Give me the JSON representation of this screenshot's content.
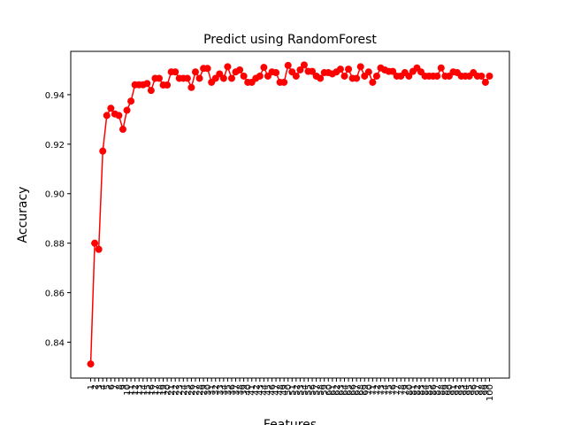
{
  "chart_data": {
    "type": "line",
    "title": "Predict using RandomForest",
    "xlabel": "Features",
    "ylabel": "Accuracy",
    "xlim": [
      -3.95,
      104.95
    ],
    "ylim": [
      0.8255,
      0.9575
    ],
    "yticks": [
      0.84,
      0.86,
      0.88,
      0.9,
      0.92,
      0.94
    ],
    "ytick_labels": [
      "0.84",
      "0.86",
      "0.88",
      "0.90",
      "0.92",
      "0.94"
    ],
    "xticks": [
      1,
      2,
      3,
      4,
      5,
      6,
      7,
      8,
      9,
      10,
      11,
      12,
      13,
      14,
      15,
      16,
      17,
      18,
      19,
      20,
      21,
      22,
      23,
      24,
      25,
      26,
      27,
      28,
      29,
      30,
      31,
      32,
      33,
      34,
      35,
      36,
      37,
      38,
      39,
      40,
      41,
      42,
      43,
      44,
      45,
      46,
      47,
      48,
      49,
      50,
      51,
      52,
      53,
      54,
      55,
      56,
      57,
      58,
      59,
      60,
      61,
      62,
      63,
      64,
      65,
      66,
      67,
      68,
      69,
      70,
      71,
      72,
      73,
      74,
      75,
      76,
      77,
      78,
      79,
      80,
      81,
      82,
      83,
      84,
      85,
      86,
      87,
      88,
      89,
      90,
      91,
      92,
      93,
      94,
      95,
      96,
      97,
      98,
      99,
      100
    ],
    "grid": false,
    "series": [
      {
        "color": "#ff0000",
        "marker": "circle",
        "x": [
          1,
          2,
          3,
          4,
          5,
          6,
          7,
          8,
          9,
          10,
          11,
          12,
          13,
          14,
          15,
          16,
          17,
          18,
          19,
          20,
          21,
          22,
          23,
          24,
          25,
          26,
          27,
          28,
          29,
          30,
          31,
          32,
          33,
          34,
          35,
          36,
          37,
          38,
          39,
          40,
          41,
          42,
          43,
          44,
          45,
          46,
          47,
          48,
          49,
          50,
          51,
          52,
          53,
          54,
          55,
          56,
          57,
          58,
          59,
          60,
          61,
          62,
          63,
          64,
          65,
          66,
          67,
          68,
          69,
          70,
          71,
          72,
          73,
          74,
          75,
          76,
          77,
          78,
          79,
          80,
          81,
          82,
          83,
          84,
          85,
          86,
          87,
          88,
          89,
          90,
          91,
          92,
          93,
          94,
          95,
          96,
          97,
          98,
          99,
          100
        ],
        "values": [
          0.8312,
          0.88,
          0.8775,
          0.9172,
          0.9316,
          0.9345,
          0.9322,
          0.9316,
          0.926,
          0.9337,
          0.9374,
          0.944,
          0.944,
          0.944,
          0.9445,
          0.9417,
          0.9466,
          0.9466,
          0.9439,
          0.9439,
          0.9492,
          0.9492,
          0.9466,
          0.9466,
          0.9466,
          0.9429,
          0.9492,
          0.9466,
          0.9506,
          0.9506,
          0.945,
          0.9466,
          0.9484,
          0.9466,
          0.9513,
          0.9466,
          0.9492,
          0.95,
          0.9475,
          0.945,
          0.945,
          0.9466,
          0.9475,
          0.951,
          0.9475,
          0.9492,
          0.9489,
          0.945,
          0.945,
          0.9518,
          0.9492,
          0.9475,
          0.95,
          0.952,
          0.9494,
          0.9494,
          0.9475,
          0.9466,
          0.9489,
          0.9489,
          0.9484,
          0.9492,
          0.9503,
          0.9475,
          0.9503,
          0.9466,
          0.9466,
          0.9513,
          0.9475,
          0.9492,
          0.945,
          0.9475,
          0.9508,
          0.95,
          0.9494,
          0.9494,
          0.9475,
          0.9475,
          0.9489,
          0.9475,
          0.9494,
          0.9508,
          0.9492,
          0.9475,
          0.9475,
          0.9475,
          0.9475,
          0.9508,
          0.9475,
          0.9475,
          0.9492,
          0.9489,
          0.9475,
          0.9475,
          0.9475,
          0.9489,
          0.9475,
          0.9475,
          0.945,
          0.9475
        ]
      }
    ]
  }
}
